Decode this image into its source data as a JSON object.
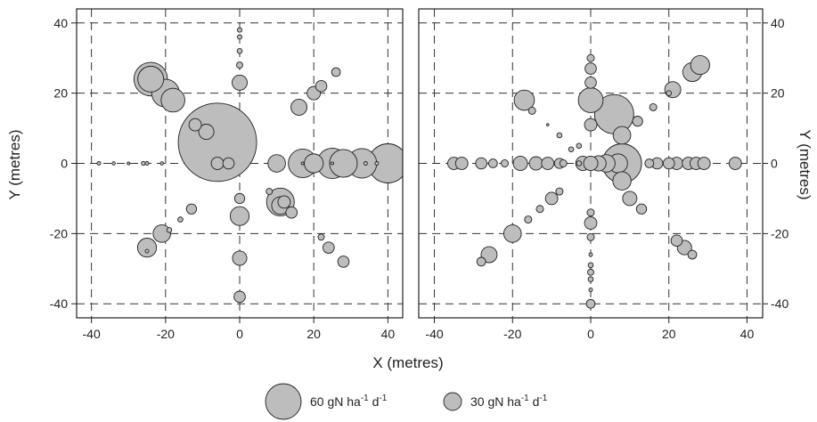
{
  "chart_data": {
    "type": "scatter",
    "subtype": "bubble",
    "xlabel": "X (metres)",
    "ylabel_left": "Y (metres)",
    "ylabel_right": "Y (metres)",
    "xlim": [
      -44,
      44
    ],
    "ylim": [
      -44,
      44
    ],
    "x_ticks": [
      -40,
      -20,
      0,
      20,
      40
    ],
    "y_ticks": [
      -40,
      -20,
      0,
      20,
      40
    ],
    "grid": "dashed",
    "bubble_color": "#bdbdbd",
    "bubble_stroke": "#222222",
    "legend": {
      "placement": "bottom-center",
      "entries": [
        {
          "size_value": 60,
          "label_main": "60 gN ha",
          "sup1": "-1",
          "label_mid": " d",
          "sup2": "-1"
        },
        {
          "size_value": 30,
          "label_main": "30 gN ha",
          "sup1": "-1",
          "label_mid": " d",
          "sup2": "-1"
        }
      ]
    },
    "panels": [
      {
        "y_tick_side": "left",
        "points": [
          {
            "x": -6,
            "y": 6,
            "v": 240
          },
          {
            "x": -24,
            "y": 24,
            "v": 44
          },
          {
            "x": -24,
            "y": 24,
            "v": 26
          },
          {
            "x": -20,
            "y": 20,
            "v": 30
          },
          {
            "x": -18,
            "y": 18,
            "v": 22
          },
          {
            "x": -12,
            "y": 11,
            "v": 6
          },
          {
            "x": -9,
            "y": 9,
            "v": 9
          },
          {
            "x": 0,
            "y": 23,
            "v": 9
          },
          {
            "x": 0,
            "y": 28,
            "v": 1.5
          },
          {
            "x": 0,
            "y": 32,
            "v": 1
          },
          {
            "x": 0,
            "y": 36,
            "v": 0.8
          },
          {
            "x": 0,
            "y": 38,
            "v": 0.8
          },
          {
            "x": 16,
            "y": 16,
            "v": 10
          },
          {
            "x": 20,
            "y": 20,
            "v": 7
          },
          {
            "x": 22,
            "y": 22,
            "v": 5
          },
          {
            "x": 26,
            "y": 26,
            "v": 3
          },
          {
            "x": 10,
            "y": 0,
            "v": 12
          },
          {
            "x": 17,
            "y": 0,
            "v": 32
          },
          {
            "x": 20,
            "y": 0,
            "v": 14
          },
          {
            "x": 25,
            "y": 0,
            "v": 36
          },
          {
            "x": 28,
            "y": 0,
            "v": 30
          },
          {
            "x": 33,
            "y": 0,
            "v": 34
          },
          {
            "x": 40,
            "y": 0,
            "v": 60
          },
          {
            "x": 17,
            "y": 0,
            "v": 0.3
          },
          {
            "x": 25,
            "y": 0,
            "v": 0.3
          },
          {
            "x": 34,
            "y": 0,
            "v": 0.5
          },
          {
            "x": 37,
            "y": 0,
            "v": 0.5
          },
          {
            "x": -38,
            "y": 0,
            "v": 0.5
          },
          {
            "x": -34,
            "y": 0,
            "v": 0.4
          },
          {
            "x": -30,
            "y": 0,
            "v": 0.3
          },
          {
            "x": -26,
            "y": 0,
            "v": 0.6
          },
          {
            "x": -25,
            "y": 0,
            "v": 0.5
          },
          {
            "x": -21,
            "y": 0,
            "v": 0.4
          },
          {
            "x": -6,
            "y": 0,
            "v": 6
          },
          {
            "x": -3,
            "y": 0,
            "v": 5
          },
          {
            "x": 11,
            "y": -11,
            "v": 30
          },
          {
            "x": 11,
            "y": -12,
            "v": 12
          },
          {
            "x": 12,
            "y": -11,
            "v": 6
          },
          {
            "x": 14,
            "y": -14,
            "v": 5
          },
          {
            "x": 8,
            "y": -8,
            "v": 1.5
          },
          {
            "x": 0,
            "y": -10,
            "v": 4
          },
          {
            "x": 0,
            "y": -15,
            "v": 14
          },
          {
            "x": 0,
            "y": -27,
            "v": 8
          },
          {
            "x": 0,
            "y": -38,
            "v": 5
          },
          {
            "x": -13,
            "y": -13,
            "v": 4
          },
          {
            "x": -16,
            "y": -16,
            "v": 1
          },
          {
            "x": -19,
            "y": -19,
            "v": 1
          },
          {
            "x": -21,
            "y": -20,
            "v": 12
          },
          {
            "x": -25,
            "y": -24,
            "v": 14
          },
          {
            "x": -25,
            "y": -25,
            "v": 0.5
          },
          {
            "x": 22,
            "y": -21,
            "v": 1.5
          },
          {
            "x": 24,
            "y": -24,
            "v": 5
          },
          {
            "x": 28,
            "y": -28,
            "v": 5
          }
        ]
      },
      {
        "y_tick_side": "right",
        "points": [
          {
            "x": 8,
            "y": 0,
            "v": 60
          },
          {
            "x": 6,
            "y": 14,
            "v": 60
          },
          {
            "x": 0,
            "y": 18,
            "v": 24
          },
          {
            "x": 0,
            "y": 11,
            "v": 6
          },
          {
            "x": 0,
            "y": 23,
            "v": 5
          },
          {
            "x": 0,
            "y": 27,
            "v": 5
          },
          {
            "x": 0,
            "y": 30,
            "v": 2
          },
          {
            "x": -17,
            "y": 18,
            "v": 16
          },
          {
            "x": -15,
            "y": 15,
            "v": 2
          },
          {
            "x": 8,
            "y": 8,
            "v": 12
          },
          {
            "x": 12,
            "y": 12,
            "v": 4
          },
          {
            "x": 16,
            "y": 16,
            "v": 2
          },
          {
            "x": 20,
            "y": 20,
            "v": 1
          },
          {
            "x": 21,
            "y": 21,
            "v": 10
          },
          {
            "x": 26,
            "y": 26,
            "v": 14
          },
          {
            "x": 28,
            "y": 28,
            "v": 14
          },
          {
            "x": -8,
            "y": 8,
            "v": 1
          },
          {
            "x": -11,
            "y": 11,
            "v": 0.2
          },
          {
            "x": -35,
            "y": 0,
            "v": 6
          },
          {
            "x": -33,
            "y": 0,
            "v": 6
          },
          {
            "x": -28,
            "y": 0,
            "v": 5
          },
          {
            "x": -25,
            "y": 0,
            "v": 3
          },
          {
            "x": -22,
            "y": 0,
            "v": 2
          },
          {
            "x": -18,
            "y": 0,
            "v": 8
          },
          {
            "x": -14,
            "y": 0,
            "v": 7
          },
          {
            "x": -11,
            "y": 0,
            "v": 6
          },
          {
            "x": -8,
            "y": 0,
            "v": 4
          },
          {
            "x": -7,
            "y": 0,
            "v": 2
          },
          {
            "x": -3,
            "y": 0,
            "v": 1
          },
          {
            "x": -2,
            "y": 0,
            "v": 8
          },
          {
            "x": 0,
            "y": 0,
            "v": 8
          },
          {
            "x": 2,
            "y": 0,
            "v": 9
          },
          {
            "x": 4,
            "y": 0,
            "v": 12
          },
          {
            "x": 7,
            "y": 0,
            "v": 14
          },
          {
            "x": 15,
            "y": 0,
            "v": 3
          },
          {
            "x": 17,
            "y": 0,
            "v": 5
          },
          {
            "x": 20,
            "y": 0,
            "v": 5
          },
          {
            "x": 22,
            "y": 0,
            "v": 6
          },
          {
            "x": 25,
            "y": 0,
            "v": 6
          },
          {
            "x": 27,
            "y": 0,
            "v": 6
          },
          {
            "x": 29,
            "y": 0,
            "v": 6
          },
          {
            "x": 37,
            "y": 0,
            "v": 6
          },
          {
            "x": -3,
            "y": 5,
            "v": 1
          },
          {
            "x": -5,
            "y": 4,
            "v": 1
          },
          {
            "x": -8,
            "y": -8,
            "v": 2
          },
          {
            "x": -10,
            "y": -10,
            "v": 6
          },
          {
            "x": -13,
            "y": -13,
            "v": 2
          },
          {
            "x": -16,
            "y": -16,
            "v": 2
          },
          {
            "x": -20,
            "y": -20,
            "v": 12
          },
          {
            "x": -26,
            "y": -26,
            "v": 10
          },
          {
            "x": -28,
            "y": -28,
            "v": 3
          },
          {
            "x": 8,
            "y": -5,
            "v": 13
          },
          {
            "x": 10,
            "y": -10,
            "v": 8
          },
          {
            "x": 13,
            "y": -13,
            "v": 4
          },
          {
            "x": 22,
            "y": -22,
            "v": 5
          },
          {
            "x": 24,
            "y": -24,
            "v": 8
          },
          {
            "x": 26,
            "y": -26,
            "v": 3
          },
          {
            "x": 0,
            "y": -14,
            "v": 2
          },
          {
            "x": 0,
            "y": -17,
            "v": 6
          },
          {
            "x": 0,
            "y": -21,
            "v": 2
          },
          {
            "x": 0,
            "y": -26,
            "v": 0.5
          },
          {
            "x": 0,
            "y": -29,
            "v": 1
          },
          {
            "x": 0,
            "y": -31,
            "v": 1.5
          },
          {
            "x": 0,
            "y": -33,
            "v": 1
          },
          {
            "x": 0,
            "y": -36,
            "v": 0.5
          },
          {
            "x": 0,
            "y": -40,
            "v": 3
          }
        ]
      }
    ]
  }
}
